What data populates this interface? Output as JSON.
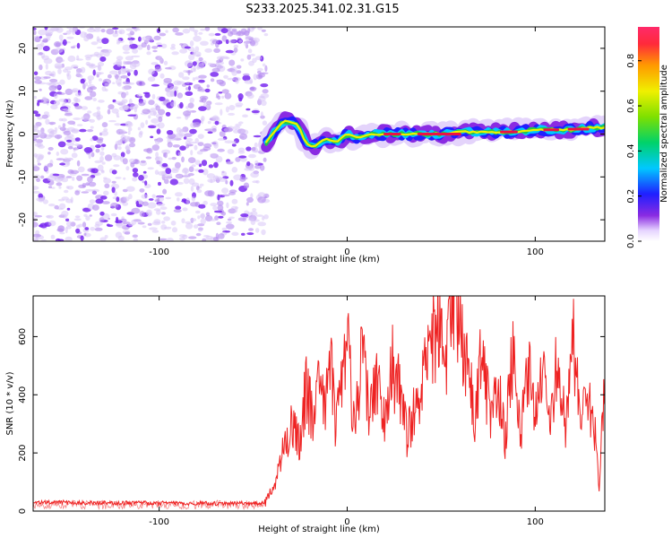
{
  "title": "S233.2025.341.02.31.G15",
  "colors": {
    "snr_line": "#ee2222",
    "spectrum_points": "#7a2af0",
    "track_core": "#ee1144",
    "axis": "#000000"
  },
  "chart_data": [
    {
      "type": "heatmap",
      "name": "spectrogram",
      "title": "S233.2025.341.02.31.G15",
      "xlabel": "Height of straight line (km)",
      "ylabel": "Frequency (Hz)",
      "xlim": [
        -167,
        137
      ],
      "ylim": [
        -25,
        25
      ],
      "x_ticks": [
        -100,
        0,
        100
      ],
      "y_ticks": [
        -20,
        -10,
        0,
        10,
        20
      ],
      "noise_region_x": [
        -167,
        -43
      ],
      "track": {
        "x": [
          -43,
          -38,
          -34,
          -30,
          -26,
          -22,
          -18,
          -12,
          -6,
          0,
          6,
          12,
          20,
          30,
          40,
          50,
          60,
          70,
          80,
          90,
          100,
          110,
          120,
          130,
          137
        ],
        "y": [
          -2,
          1,
          3,
          3,
          2,
          -2,
          -3,
          -1,
          -2,
          0,
          -1,
          0,
          0,
          0,
          0,
          0,
          0.5,
          0.5,
          0.5,
          0.5,
          1,
          1,
          1,
          1.5,
          1.5
        ]
      },
      "colorbar": {
        "label": "Normalized spectral amplitude",
        "range": [
          0,
          0.95
        ],
        "ticks": [
          0.0,
          0.2,
          0.4,
          0.6,
          0.8
        ],
        "tick_labels": [
          "0.0",
          "0.2",
          "0.4",
          "0.6",
          "0.8"
        ]
      }
    },
    {
      "type": "line",
      "name": "snr",
      "xlabel": "Height of straight line (km)",
      "ylabel": "SNR (10 * v/v)",
      "xlim": [
        -167,
        137
      ],
      "ylim": [
        0,
        740
      ],
      "x_ticks": [
        -100,
        0,
        100
      ],
      "y_ticks": [
        0,
        200,
        400,
        600
      ],
      "series": [
        {
          "x": [
            -167,
            -150,
            -130,
            -110,
            -90,
            -70,
            -55,
            -44,
            -40,
            -36,
            -32,
            -28,
            -25,
            -22,
            -18,
            -15,
            -12,
            -9,
            -6,
            -3,
            0,
            4,
            8,
            12,
            16,
            20,
            24,
            28,
            32,
            36,
            40,
            44,
            48,
            52,
            56,
            58,
            60,
            64,
            68,
            72,
            76,
            80,
            84,
            88,
            92,
            96,
            100,
            104,
            108,
            112,
            116,
            120,
            124,
            128,
            132,
            134,
            137
          ],
          "values": [
            30,
            30,
            28,
            28,
            27,
            26,
            27,
            28,
            70,
            150,
            260,
            300,
            230,
            420,
            310,
            490,
            370,
            520,
            280,
            430,
            590,
            280,
            560,
            330,
            470,
            300,
            500,
            420,
            250,
            380,
            430,
            560,
            640,
            480,
            690,
            740,
            630,
            500,
            330,
            560,
            300,
            470,
            250,
            560,
            240,
            520,
            350,
            480,
            260,
            590,
            280,
            600,
            330,
            380,
            250,
            60,
            480
          ]
        }
      ]
    }
  ]
}
